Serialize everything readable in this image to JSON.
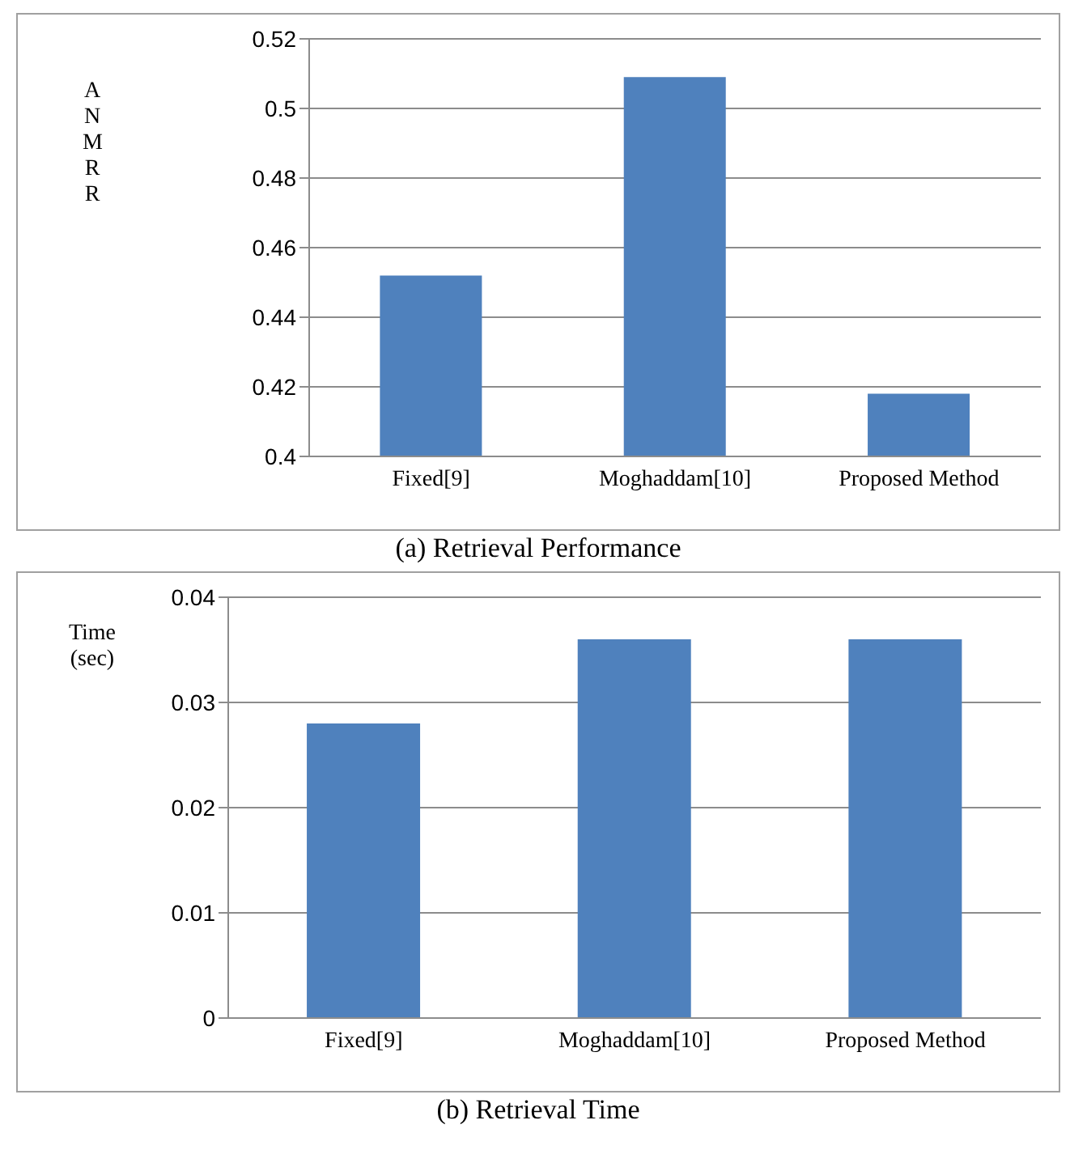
{
  "chart_data": [
    {
      "type": "bar",
      "title": "(a) Retrieval Performance",
      "ylabel": "ANMRR",
      "categories": [
        "Fixed[9]",
        "Moghaddam[10]",
        "Proposed Method"
      ],
      "values": [
        0.452,
        0.509,
        0.418
      ],
      "color": "#4f81bd",
      "ylim": [
        0.4,
        0.52
      ],
      "yticks": [
        0.4,
        0.42,
        0.44,
        0.46,
        0.48,
        0.5,
        0.52
      ],
      "grid": "y",
      "legend": false
    },
    {
      "type": "bar",
      "title": "(b) Retrieval Time",
      "ylabel": "Time (sec)",
      "categories": [
        "Fixed[9]",
        "Moghaddam[10]",
        "Proposed Method"
      ],
      "values": [
        0.028,
        0.036,
        0.036
      ],
      "color": "#4f81bd",
      "ylim": [
        0,
        0.04
      ],
      "yticks": [
        0,
        0.01,
        0.02,
        0.03,
        0.04
      ],
      "grid": "y",
      "legend": false
    }
  ]
}
